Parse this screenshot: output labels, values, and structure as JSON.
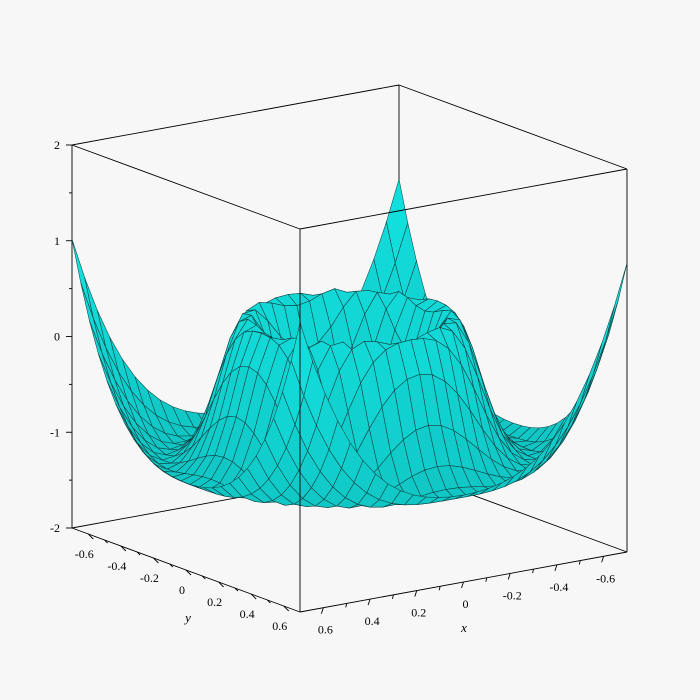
{
  "colors": {
    "background": "#f7f7f7",
    "surface": "#14f0ee",
    "mesh": "#0c3a3a",
    "box": "#000000"
  },
  "chart_data": {
    "type": "surface3d",
    "title": "",
    "xlabel": "x",
    "ylabel": "y",
    "zlabel": "",
    "xlim": [
      -0.7,
      0.7
    ],
    "ylim": [
      -0.7,
      0.7
    ],
    "zlim": [
      -2,
      2
    ],
    "x_ticks": [
      "-0.6",
      "-0.4",
      "-0.2",
      "0",
      "0.2",
      "0.4",
      "0.6"
    ],
    "y_ticks": [
      "-0.6",
      "-0.4",
      "-0.2",
      "0",
      "0.2",
      "0.4",
      "0.6"
    ],
    "z_ticks": [
      "-2",
      "-1",
      "0",
      "1",
      "2"
    ],
    "grid": false,
    "box": true,
    "surface_color": "cyan",
    "shape": "radial ripple: raised ring of height ~1.0 around a central depression near 0.6, outer trough near -1.2, rising toward the corners to about 0.6"
  }
}
